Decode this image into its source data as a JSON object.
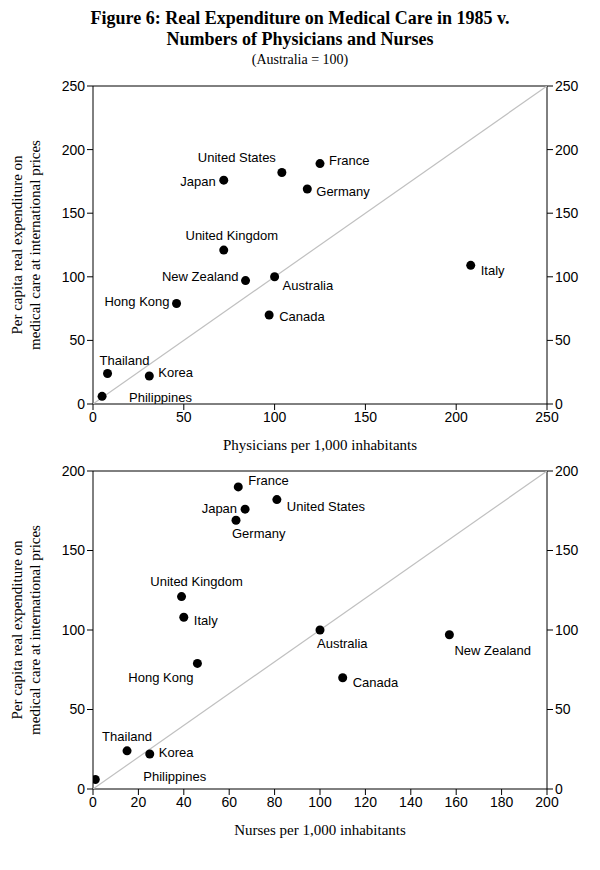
{
  "title": "Figure 6: Real Expenditure on Medical Care in 1985 v. Numbers of Physicians and Nurses",
  "subtitle": "(Australia = 100)",
  "chart_data": [
    {
      "type": "scatter",
      "x_label": "Physicians per 1,000 inhabitants",
      "y_label": "Per capita real expenditure on medical care at international prices",
      "xlim": [
        0,
        250
      ],
      "ylim": [
        0,
        250
      ],
      "xticks": [
        0,
        50,
        100,
        150,
        200,
        250
      ],
      "yticks": [
        0,
        50,
        100,
        150,
        200,
        250
      ],
      "color": "#000000",
      "labels": [
        "United States",
        "France",
        "Germany",
        "Japan",
        "United Kingdom",
        "New Zealand",
        "Australia",
        "Canada",
        "Italy",
        "Hong Kong",
        "Thailand",
        "Korea",
        "Philippines"
      ],
      "x": [
        104,
        125,
        118,
        72,
        72,
        84,
        100,
        97,
        208,
        46,
        8,
        31,
        5
      ],
      "values": [
        182,
        189,
        169,
        176,
        121,
        97,
        100,
        70,
        109,
        79,
        24,
        22,
        6
      ],
      "reference_line": {
        "x": [
          0,
          250
        ],
        "y": [
          0,
          250
        ]
      }
    },
    {
      "type": "scatter",
      "x_label": "Nurses per 1,000 inhabitants",
      "y_label": "Per capita real expenditure on medical care at international prices",
      "xlim": [
        0,
        200
      ],
      "ylim": [
        0,
        200
      ],
      "xticks": [
        0,
        20,
        40,
        60,
        80,
        100,
        120,
        140,
        160,
        180,
        200
      ],
      "yticks": [
        0,
        50,
        100,
        150,
        200
      ],
      "color": "#000000",
      "labels": [
        "France",
        "Japan",
        "United States",
        "Germany",
        "United Kingdom",
        "Italy",
        "Hong Kong",
        "Australia",
        "New Zealand",
        "Canada",
        "Thailand",
        "Korea",
        "Philippines"
      ],
      "x": [
        64,
        67,
        81,
        63,
        39,
        40,
        46,
        100,
        157,
        110,
        15,
        25,
        1
      ],
      "values": [
        190,
        176,
        182,
        169,
        121,
        108,
        79,
        100,
        97,
        70,
        24,
        22,
        6
      ],
      "reference_line": {
        "x": [
          0,
          200
        ],
        "y": [
          0,
          200
        ]
      }
    }
  ]
}
